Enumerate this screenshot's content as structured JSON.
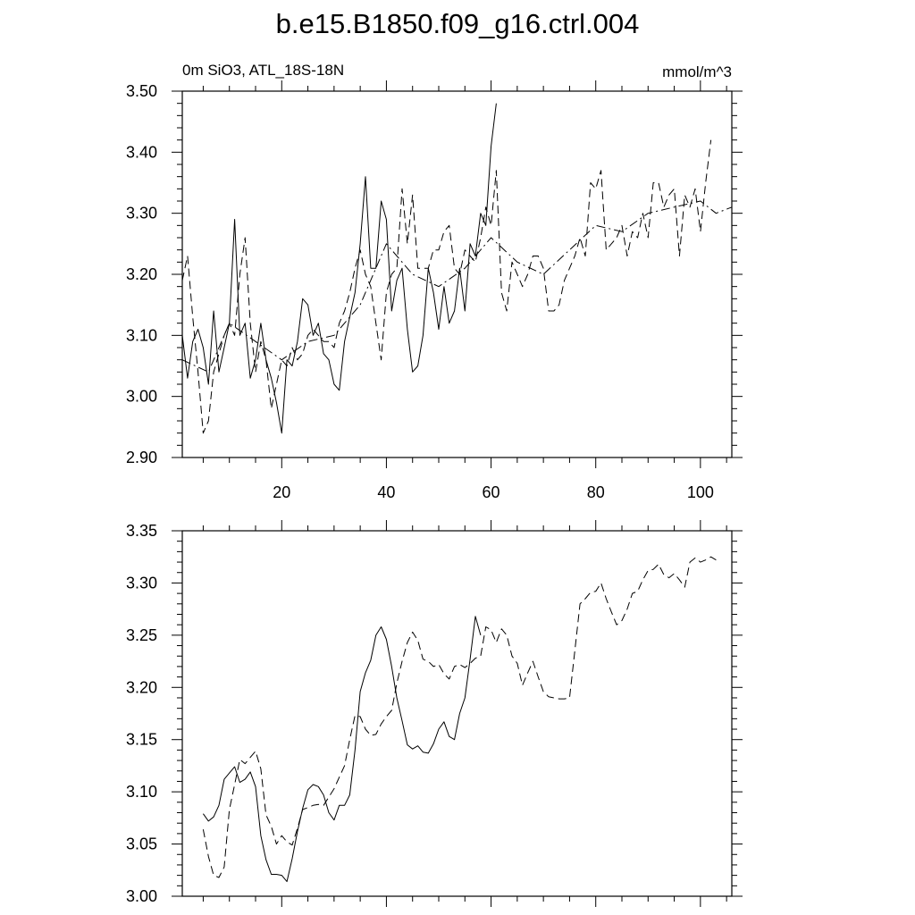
{
  "title": "b.e15.B1850.f09_g16.ctrl.004",
  "subtitle_left": "0m SiO3, ATL_18S-18N",
  "subtitle_right": "mmol/m^3",
  "colors": {
    "line": "#000000",
    "background": "#ffffff"
  },
  "chart_data": [
    {
      "type": "line",
      "panel": "top",
      "xlim": [
        1,
        106
      ],
      "ylim": [
        2.9,
        3.5
      ],
      "x_major_ticks": [
        20,
        40,
        60,
        80,
        100
      ],
      "x_tick_labels": [
        "20",
        "40",
        "60",
        "80",
        "100"
      ],
      "y_major_ticks": [
        2.9,
        3.0,
        3.1,
        3.2,
        3.3,
        3.4,
        3.5
      ],
      "y_tick_labels": [
        "2.90",
        "3.00",
        "3.10",
        "3.20",
        "3.30",
        "3.40",
        "3.50"
      ],
      "grid": false,
      "series": [
        {
          "style": "solid",
          "x": [
            1,
            2,
            3,
            4,
            5,
            6,
            7,
            8,
            9,
            10,
            11,
            12,
            13,
            14,
            15,
            16,
            17,
            18,
            19,
            20,
            21,
            22,
            23,
            24,
            25,
            26,
            27,
            28,
            29,
            30,
            31,
            32,
            33,
            34,
            35,
            36,
            37,
            38,
            39,
            40,
            41,
            42,
            43,
            44,
            45,
            46,
            47,
            48,
            49,
            50,
            51,
            52,
            53,
            54,
            55,
            56,
            57,
            58,
            59,
            60,
            61
          ],
          "values": [
            3.1,
            3.03,
            3.09,
            3.11,
            3.08,
            3.02,
            3.14,
            3.04,
            3.08,
            3.12,
            3.29,
            3.1,
            3.12,
            3.03,
            3.06,
            3.12,
            3.06,
            3.03,
            2.99,
            2.94,
            3.06,
            3.05,
            3.09,
            3.16,
            3.15,
            3.1,
            3.12,
            3.07,
            3.06,
            3.02,
            3.01,
            3.09,
            3.13,
            3.17,
            3.25,
            3.36,
            3.21,
            3.21,
            3.32,
            3.29,
            3.14,
            3.19,
            3.21,
            3.11,
            3.04,
            3.05,
            3.1,
            3.21,
            3.17,
            3.11,
            3.18,
            3.12,
            3.14,
            3.21,
            3.14,
            3.25,
            3.23,
            3.3,
            3.28,
            3.41,
            3.48
          ]
        },
        {
          "style": "dashed",
          "x": [
            1,
            2,
            3,
            4,
            5,
            6,
            7,
            8,
            9,
            10,
            11,
            12,
            13,
            14,
            15,
            16,
            17,
            18,
            19,
            20,
            21,
            22,
            23,
            24,
            25,
            26,
            27,
            28,
            29,
            30,
            31,
            32,
            33,
            34,
            35,
            36,
            37,
            38,
            39,
            40,
            41,
            42,
            43,
            44,
            45,
            46,
            47,
            48,
            49,
            50,
            51,
            52,
            53,
            54,
            55,
            56,
            57,
            58,
            59,
            60,
            61,
            62,
            63,
            64,
            65,
            66,
            67,
            68,
            69,
            70,
            71,
            72,
            73,
            74,
            75,
            76,
            77,
            78,
            79,
            80,
            81,
            82,
            83,
            84,
            85,
            86,
            87,
            88,
            89,
            90,
            91,
            92,
            93,
            94,
            95,
            96,
            97,
            98,
            99,
            100,
            101,
            102
          ],
          "values": [
            3.19,
            3.23,
            3.13,
            3.04,
            2.94,
            2.96,
            3.04,
            3.07,
            3.1,
            3.12,
            3.1,
            3.2,
            3.26,
            3.12,
            3.04,
            3.09,
            3.06,
            2.98,
            3.02,
            3.06,
            3.05,
            3.08,
            3.06,
            3.07,
            3.1,
            3.11,
            3.1,
            3.09,
            3.09,
            3.08,
            3.12,
            3.14,
            3.17,
            3.21,
            3.24,
            3.2,
            3.18,
            3.12,
            3.06,
            3.17,
            3.2,
            3.21,
            3.34,
            3.25,
            3.33,
            3.21,
            3.21,
            3.21,
            3.24,
            3.24,
            3.27,
            3.28,
            3.21,
            3.2,
            3.24,
            3.23,
            3.22,
            3.26,
            3.31,
            3.28,
            3.37,
            3.17,
            3.14,
            3.22,
            3.2,
            3.18,
            3.2,
            3.23,
            3.23,
            3.21,
            3.14,
            3.14,
            3.15,
            3.19,
            3.21,
            3.23,
            3.26,
            3.23,
            3.35,
            3.34,
            3.37,
            3.24,
            3.25,
            3.26,
            3.28,
            3.23,
            3.27,
            3.26,
            3.3,
            3.26,
            3.35,
            3.35,
            3.31,
            3.33,
            3.34,
            3.23,
            3.33,
            3.31,
            3.34,
            3.27,
            3.35,
            3.42
          ]
        },
        {
          "style": "dashdot",
          "x": [
            1,
            6,
            10,
            15,
            20,
            25,
            30,
            35,
            40,
            45,
            50,
            55,
            60,
            65,
            70,
            75,
            80,
            85,
            90,
            95,
            100,
            103,
            106
          ],
          "values": [
            3.06,
            3.04,
            3.12,
            3.09,
            3.06,
            3.09,
            3.1,
            3.15,
            3.25,
            3.2,
            3.18,
            3.21,
            3.26,
            3.22,
            3.2,
            3.24,
            3.28,
            3.27,
            3.3,
            3.31,
            3.32,
            3.3,
            3.31
          ]
        }
      ]
    },
    {
      "type": "line",
      "panel": "bottom",
      "xlim": [
        1,
        106
      ],
      "ylim": [
        3.0,
        3.35
      ],
      "x_major_ticks": [
        20,
        40,
        60,
        80,
        100
      ],
      "y_major_ticks": [
        3.0,
        3.05,
        3.1,
        3.15,
        3.2,
        3.25,
        3.3,
        3.35
      ],
      "y_tick_labels": [
        "3.00",
        "3.05",
        "3.10",
        "3.15",
        "3.20",
        "3.25",
        "3.30",
        "3.35"
      ],
      "grid": false,
      "series": [
        {
          "style": "solid",
          "x": [
            5,
            6,
            7,
            8,
            9,
            10,
            11,
            12,
            13,
            14,
            15,
            16,
            17,
            18,
            19,
            20,
            21,
            22,
            23,
            24,
            25,
            26,
            27,
            28,
            29,
            30,
            31,
            32,
            33,
            34,
            35,
            36,
            37,
            38,
            39,
            40,
            41,
            42,
            43,
            44,
            45,
            46,
            47,
            48,
            49,
            50,
            51,
            52,
            53,
            54,
            55,
            56,
            57,
            58
          ],
          "values": [
            3.079,
            3.072,
            3.076,
            3.087,
            3.112,
            3.118,
            3.124,
            3.109,
            3.112,
            3.119,
            3.105,
            3.058,
            3.035,
            3.021,
            3.021,
            3.02,
            3.014,
            3.036,
            3.062,
            3.084,
            3.102,
            3.107,
            3.105,
            3.097,
            3.08,
            3.073,
            3.087,
            3.087,
            3.097,
            3.14,
            3.196,
            3.214,
            3.226,
            3.25,
            3.258,
            3.246,
            3.22,
            3.19,
            3.168,
            3.145,
            3.141,
            3.144,
            3.138,
            3.137,
            3.146,
            3.16,
            3.167,
            3.153,
            3.15,
            3.175,
            3.19,
            3.227,
            3.268,
            3.25
          ]
        },
        {
          "style": "dashed",
          "x": [
            5,
            6,
            7,
            8,
            9,
            10,
            11,
            12,
            13,
            14,
            15,
            16,
            17,
            18,
            19,
            20,
            21,
            22,
            23,
            24,
            25,
            26,
            27,
            28,
            29,
            30,
            31,
            32,
            33,
            34,
            35,
            36,
            37,
            38,
            39,
            40,
            41,
            42,
            43,
            44,
            45,
            46,
            47,
            48,
            49,
            50,
            51,
            52,
            53,
            54,
            55,
            56,
            57,
            58,
            59,
            60,
            61,
            62,
            63,
            64,
            65,
            66,
            67,
            68,
            69,
            70,
            71,
            72,
            73,
            74,
            75,
            76,
            77,
            78,
            79,
            80,
            81,
            82,
            83,
            84,
            85,
            86,
            87,
            88,
            89,
            90,
            91,
            92,
            93,
            94,
            95,
            96,
            97,
            98,
            99,
            100,
            101,
            102,
            103
          ],
          "values": [
            3.064,
            3.038,
            3.02,
            3.018,
            3.028,
            3.083,
            3.107,
            3.131,
            3.127,
            3.133,
            3.139,
            3.122,
            3.078,
            3.067,
            3.05,
            3.058,
            3.052,
            3.049,
            3.065,
            3.083,
            3.085,
            3.087,
            3.088,
            3.087,
            3.095,
            3.103,
            3.114,
            3.125,
            3.15,
            3.173,
            3.172,
            3.16,
            3.154,
            3.155,
            3.165,
            3.172,
            3.178,
            3.204,
            3.225,
            3.243,
            3.253,
            3.245,
            3.227,
            3.225,
            3.22,
            3.222,
            3.213,
            3.208,
            3.22,
            3.222,
            3.219,
            3.223,
            3.228,
            3.23,
            3.258,
            3.255,
            3.243,
            3.256,
            3.25,
            3.23,
            3.223,
            3.202,
            3.214,
            3.225,
            3.21,
            3.196,
            3.191,
            3.19,
            3.189,
            3.189,
            3.19,
            3.235,
            3.28,
            3.285,
            3.291,
            3.292,
            3.3,
            3.285,
            3.272,
            3.26,
            3.264,
            3.275,
            3.29,
            3.292,
            3.303,
            3.312,
            3.313,
            3.318,
            3.308,
            3.305,
            3.309,
            3.303,
            3.296,
            3.32,
            3.324,
            3.32,
            3.322,
            3.325,
            3.322
          ]
        }
      ]
    }
  ]
}
